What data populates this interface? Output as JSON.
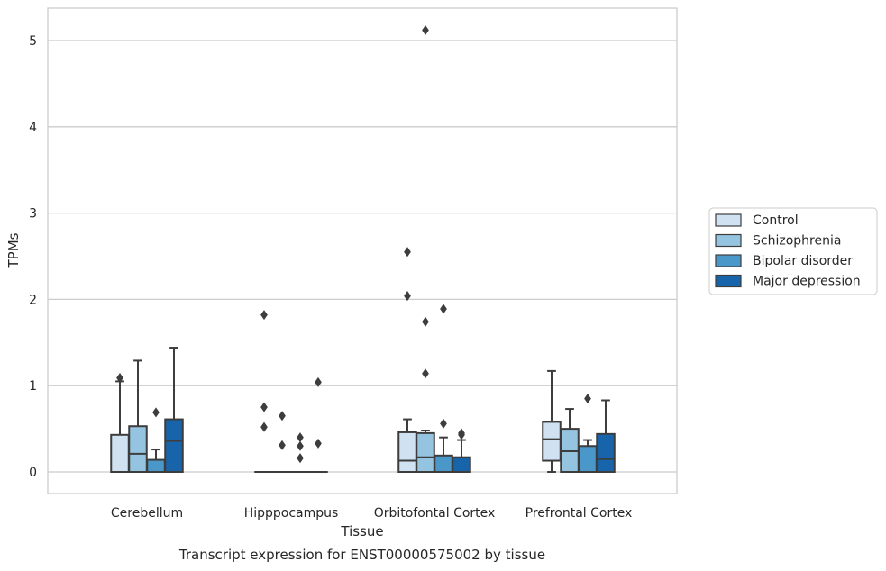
{
  "chart_data": {
    "type": "boxplot",
    "caption": "Transcript expression for ENST00000575002 by tissue",
    "xlabel": "Tissue",
    "ylabel": "TPMs",
    "ylim": [
      -0.25,
      5.38
    ],
    "yticks": [
      0,
      1,
      2,
      3,
      4,
      5
    ],
    "grid": true,
    "legend_position": "right",
    "categories": [
      "Cerebellum",
      "Hipppocampus",
      "Orbitofontal Cortex",
      "Prefrontal Cortex"
    ],
    "series": [
      {
        "name": "Control",
        "color": "#d0e1f2",
        "boxes": [
          {
            "whislo": 0,
            "q1": 0,
            "med": 0,
            "q3": 0.43,
            "whishi": 1.05,
            "fliers": [
              1.09
            ]
          },
          {
            "whislo": 0,
            "q1": 0,
            "med": 0,
            "q3": 0,
            "whishi": 0,
            "fliers": [
              1.82,
              0.75,
              0.52
            ]
          },
          {
            "whislo": 0,
            "q1": 0,
            "med": 0.13,
            "q3": 0.46,
            "whishi": 0.61,
            "fliers": [
              2.55,
              2.04
            ]
          },
          {
            "whislo": 0,
            "q1": 0.13,
            "med": 0.38,
            "q3": 0.58,
            "whishi": 1.17,
            "fliers": []
          }
        ]
      },
      {
        "name": "Schizophrenia",
        "color": "#94c4df",
        "boxes": [
          {
            "whislo": 0,
            "q1": 0,
            "med": 0.21,
            "q3": 0.53,
            "whishi": 1.29,
            "fliers": []
          },
          {
            "whislo": 0,
            "q1": 0,
            "med": 0,
            "q3": 0,
            "whishi": 0,
            "fliers": [
              0.31,
              0.65
            ]
          },
          {
            "whislo": 0,
            "q1": 0,
            "med": 0.17,
            "q3": 0.45,
            "whishi": 0.48,
            "fliers": [
              5.12,
              1.74,
              1.14
            ]
          },
          {
            "whislo": 0,
            "q1": 0,
            "med": 0.24,
            "q3": 0.5,
            "whishi": 0.73,
            "fliers": []
          }
        ]
      },
      {
        "name": "Bipolar disorder",
        "color": "#4a98c9",
        "boxes": [
          {
            "whislo": 0,
            "q1": 0,
            "med": 0,
            "q3": 0.14,
            "whishi": 0.26,
            "fliers": [
              0.69
            ]
          },
          {
            "whislo": 0,
            "q1": 0,
            "med": 0,
            "q3": 0,
            "whishi": 0,
            "fliers": [
              0.4,
              0.3,
              0.16
            ]
          },
          {
            "whislo": 0,
            "q1": 0,
            "med": 0,
            "q3": 0.19,
            "whishi": 0.4,
            "fliers": [
              1.89,
              0.56
            ]
          },
          {
            "whislo": 0,
            "q1": 0,
            "med": 0,
            "q3": 0.3,
            "whishi": 0.37,
            "fliers": [
              0.85
            ]
          }
        ]
      },
      {
        "name": "Major depression",
        "color": "#1764ab",
        "boxes": [
          {
            "whislo": 0,
            "q1": 0,
            "med": 0.36,
            "q3": 0.61,
            "whishi": 1.44,
            "fliers": []
          },
          {
            "whislo": 0,
            "q1": 0,
            "med": 0,
            "q3": 0,
            "whishi": 0,
            "fliers": [
              1.04,
              0.33
            ]
          },
          {
            "whislo": 0,
            "q1": 0,
            "med": 0,
            "q3": 0.17,
            "whishi": 0.37,
            "fliers": [
              0.43,
              0.45
            ]
          },
          {
            "whislo": 0,
            "q1": 0,
            "med": 0.15,
            "q3": 0.44,
            "whishi": 0.83,
            "fliers": []
          }
        ]
      }
    ]
  }
}
